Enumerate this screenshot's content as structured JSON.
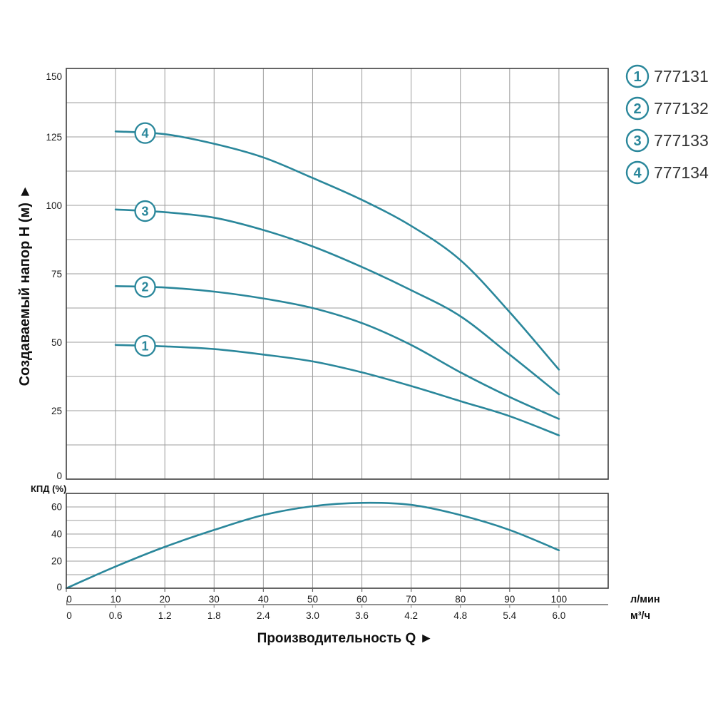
{
  "colors": {
    "curve_teal": "#2a879b",
    "grid_gray": "#9c9c9c",
    "axis_border": "#3f3f3f",
    "secondary_axis_gray": "#909090",
    "text_black": "#1b1b1b",
    "legend_text_gray": "#333333",
    "background": "#ffffff"
  },
  "axes": {
    "y_main_title": "Создаваемый напор H (м) ►",
    "x_title": "Производительность Q ►",
    "eff_title": "КПД (%)",
    "unit_lmin": "л/мин",
    "unit_m3h": "м³/ч",
    "y_main_ticks": [
      0,
      25,
      50,
      75,
      100,
      125,
      150
    ],
    "y_eff_ticks": [
      0,
      20,
      40,
      60
    ],
    "x_ticks_lmin": [
      0,
      10,
      20,
      30,
      40,
      50,
      60,
      70,
      80,
      90,
      100
    ],
    "x_ticks_m3h": [
      "0",
      "0.6",
      "1.2",
      "1.8",
      "2.4",
      "3.0",
      "3.6",
      "4.2",
      "4.8",
      "5.4",
      "6.0"
    ]
  },
  "legend": {
    "items": [
      {
        "marker": "1",
        "label": "777131"
      },
      {
        "marker": "2",
        "label": "777132"
      },
      {
        "marker": "3",
        "label": "777133"
      },
      {
        "marker": "4",
        "label": "777134"
      }
    ]
  },
  "chart_data": [
    {
      "type": "line",
      "title": "Pump head curves H(Q)",
      "xlabel": "Производительность Q",
      "ylabel": "Создаваемый напор H (м)",
      "x_units": [
        "л/мин",
        "м³/ч"
      ],
      "xlim_lmin": [
        0,
        110
      ],
      "ylim": [
        0,
        150
      ],
      "grid": true,
      "legend_position": "top-right-outside",
      "x_lmin": [
        10,
        20,
        30,
        40,
        50,
        60,
        70,
        80,
        90,
        100
      ],
      "series": [
        {
          "name": "777131",
          "marker": "1",
          "values_h_m": [
            49,
            48.5,
            47.5,
            45.5,
            43,
            39,
            34,
            28.5,
            23,
            16
          ]
        },
        {
          "name": "777132",
          "marker": "2",
          "values_h_m": [
            70.5,
            70,
            68.5,
            66,
            62.5,
            57,
            49,
            39,
            30,
            22
          ]
        },
        {
          "name": "777133",
          "marker": "3",
          "values_h_m": [
            98.5,
            97.5,
            95.5,
            91,
            85,
            77.5,
            69,
            59.5,
            45.5,
            31
          ]
        },
        {
          "name": "777134",
          "marker": "4",
          "values_h_m": [
            127,
            126,
            122.5,
            117.5,
            110,
            102,
            92.5,
            80,
            61,
            40
          ]
        }
      ]
    },
    {
      "type": "line",
      "title": "Efficiency curve",
      "ylabel": "КПД (%)",
      "ylim": [
        0,
        70
      ],
      "grid": true,
      "x_lmin": [
        0,
        10,
        20,
        30,
        40,
        50,
        60,
        70,
        80,
        90,
        100
      ],
      "series": [
        {
          "name": "КПД",
          "values_pct": [
            0,
            16,
            30.5,
            43,
            54,
            60.5,
            63,
            61.5,
            54,
            43,
            28
          ]
        }
      ]
    }
  ]
}
